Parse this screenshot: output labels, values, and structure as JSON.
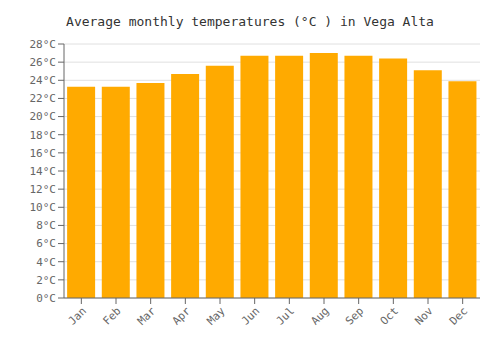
{
  "chart_data": {
    "type": "bar",
    "title": "Average monthly temperatures (°C ) in Vega Alta",
    "categories": [
      "Jan",
      "Feb",
      "Mar",
      "Apr",
      "May",
      "Jun",
      "Jul",
      "Aug",
      "Sep",
      "Oct",
      "Nov",
      "Dec"
    ],
    "values": [
      23.3,
      23.3,
      23.7,
      24.7,
      25.6,
      26.7,
      26.7,
      27.0,
      26.7,
      26.4,
      25.1,
      23.9
    ],
    "color": "#FFAA00",
    "ylim": [
      0,
      28
    ],
    "yticks": [
      {
        "value": 0,
        "label": "0°C"
      },
      {
        "value": 2,
        "label": "2°C"
      },
      {
        "value": 4,
        "label": "4°C"
      },
      {
        "value": 6,
        "label": "6°C"
      },
      {
        "value": 8,
        "label": "8°C"
      },
      {
        "value": 10,
        "label": "10°C"
      },
      {
        "value": 12,
        "label": "12°C"
      },
      {
        "value": 14,
        "label": "14°C"
      },
      {
        "value": 16,
        "label": "16°C"
      },
      {
        "value": 18,
        "label": "18°C"
      },
      {
        "value": 20,
        "label": "20°C"
      },
      {
        "value": 22,
        "label": "22°C"
      },
      {
        "value": 24,
        "label": "24°C"
      },
      {
        "value": 26,
        "label": "26°C"
      },
      {
        "value": 28,
        "label": "28°C"
      }
    ],
    "grid": true
  }
}
